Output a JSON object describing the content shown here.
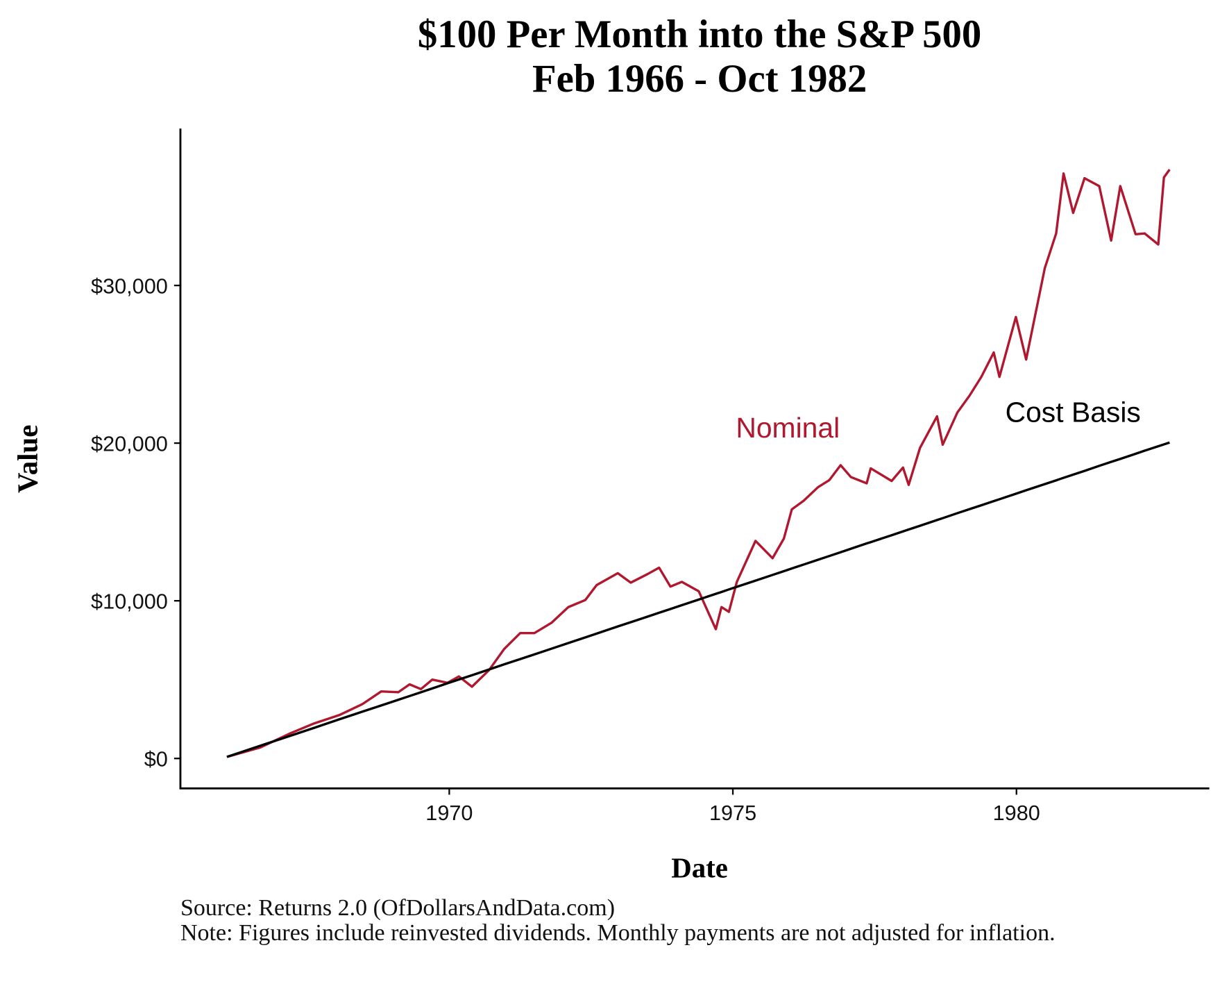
{
  "chart_data": {
    "type": "line",
    "title": "$100 Per Month into the S&P 500",
    "subtitle": "Feb 1966 - Oct 1982",
    "x_label": "Date",
    "y_label": "Value",
    "source": "Source: Returns 2.0 (OfDollarsAndData.com)",
    "note": "Note: Figures include reinvested dividends. Monthly payments are not adjusted for inflation.",
    "x": [
      1966.08,
      1966.67,
      1967.2,
      1967.6,
      1968.06,
      1968.47,
      1968.8,
      1969.1,
      1969.3,
      1969.5,
      1969.7,
      1969.97,
      1970.17,
      1970.4,
      1970.7,
      1970.97,
      1971.25,
      1971.5,
      1971.8,
      1972.1,
      1972.4,
      1972.6,
      1972.97,
      1973.2,
      1973.5,
      1973.7,
      1973.9,
      1974.1,
      1974.4,
      1974.7,
      1974.8,
      1974.93,
      1975.07,
      1975.4,
      1975.7,
      1975.9,
      1976.04,
      1976.25,
      1976.5,
      1976.7,
      1976.9,
      1977.08,
      1977.36,
      1977.43,
      1977.8,
      1978.0,
      1978.1,
      1978.3,
      1978.6,
      1978.7,
      1978.96,
      1979.17,
      1979.38,
      1979.6,
      1979.7,
      1979.99,
      1980.17,
      1980.5,
      1980.7,
      1980.83,
      1981.0,
      1981.2,
      1981.46,
      1981.67,
      1981.83,
      1982.1,
      1982.26,
      1982.5,
      1982.6,
      1982.7
    ],
    "series": [
      {
        "name": "Nominal",
        "color": "#b0182f",
        "values": [
          100,
          700,
          1600,
          2200,
          2750,
          3450,
          4250,
          4200,
          4700,
          4400,
          5000,
          4800,
          5200,
          4550,
          5600,
          6950,
          7950,
          7950,
          8600,
          9600,
          10050,
          11000,
          11750,
          11150,
          11700,
          12100,
          10900,
          11200,
          10600,
          8200,
          9600,
          9300,
          11200,
          13800,
          12700,
          13950,
          15800,
          16350,
          17200,
          17650,
          18600,
          17850,
          17450,
          18400,
          17600,
          18450,
          17350,
          19700,
          21700,
          19900,
          21950,
          23000,
          24200,
          25750,
          24200,
          28000,
          25300,
          31100,
          33300,
          37100,
          34600,
          36800,
          36300,
          32850,
          36300,
          33250,
          33300,
          32600,
          36850,
          37350
        ]
      },
      {
        "name": "Cost Basis",
        "color": "#000000",
        "values": [
          100,
          810,
          1440,
          1920,
          2480,
          2970,
          3360,
          3720,
          3960,
          4200,
          4440,
          4770,
          5010,
          5280,
          5640,
          5970,
          6300,
          6600,
          6960,
          7320,
          7680,
          7920,
          8370,
          8640,
          9000,
          9240,
          9480,
          9720,
          10080,
          10440,
          10560,
          10720,
          10890,
          11280,
          11640,
          11880,
          12050,
          12300,
          12600,
          12840,
          13080,
          13300,
          13640,
          13720,
          14160,
          14400,
          14520,
          14760,
          15120,
          15240,
          15560,
          15810,
          16060,
          16320,
          16440,
          16790,
          17010,
          17400,
          17640,
          17800,
          18000,
          18240,
          18560,
          18810,
          19000,
          19320,
          19520,
          19800,
          19920,
          20040
        ]
      }
    ],
    "xlim": [
      1965.26,
      1983.4
    ],
    "xticks": [
      1970,
      1975,
      1980
    ],
    "ylim": [
      -1900,
      39950
    ],
    "yticks": [
      {
        "value": 0,
        "label": "$0"
      },
      {
        "value": 10000,
        "label": "$10,000"
      },
      {
        "value": 20000,
        "label": "$20,000"
      },
      {
        "value": 30000,
        "label": "$30,000"
      }
    ],
    "grid": false
  }
}
